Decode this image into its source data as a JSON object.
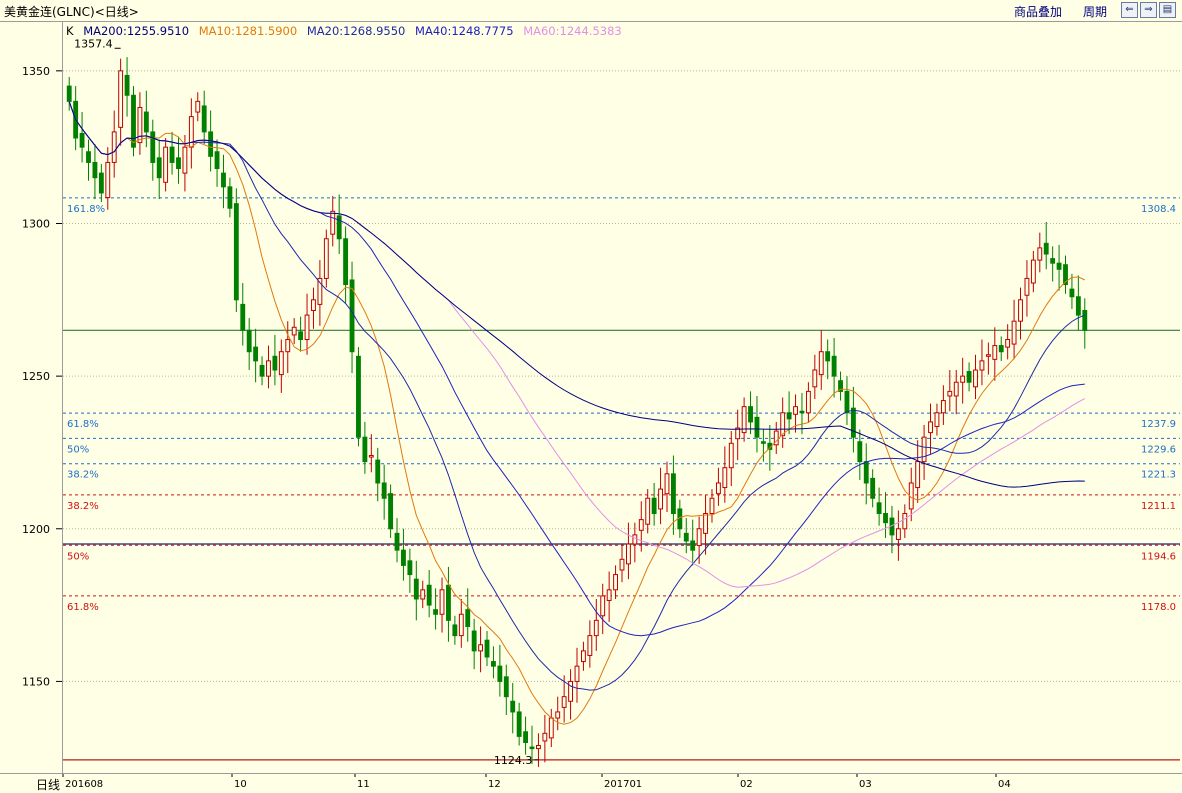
{
  "window": {
    "title": "美黄金连(GLNC)<日线>",
    "overlay_label": "商品叠加",
    "period_label": "周期",
    "nav_icons": [
      "prev-page-icon",
      "next-page-icon",
      "zoom-icon"
    ]
  },
  "legend": {
    "prefix": "K",
    "items": [
      {
        "name": "MA200",
        "value": "1255.9510",
        "color": "#000080"
      },
      {
        "name": "MA10",
        "value": "1281.5900",
        "color": "#E07A10"
      },
      {
        "name": "MA20",
        "value": "1268.9550",
        "color": "#1F2AA6"
      },
      {
        "name": "MA40",
        "value": "1248.7775",
        "color": "#2020C0"
      },
      {
        "name": "MA60",
        "value": "1244.5383",
        "color": "#E28FE8"
      }
    ]
  },
  "bottom": {
    "period": "日线"
  },
  "colors": {
    "background": "#FFFFE5",
    "up": "#C00000",
    "down": "#008000",
    "fib_up": "#1E6FC8",
    "fib_down": "#D01010",
    "grid": "#B8B8A0"
  },
  "chart_data": {
    "type": "candlestick",
    "ylim": [
      1120,
      1366
    ],
    "yticks": [
      1150,
      1200,
      1250,
      1300,
      1350
    ],
    "xticks": [
      "201608",
      "10",
      "11",
      "12",
      "201701",
      "02",
      "03",
      "04"
    ],
    "annotations": {
      "high": {
        "label": "1357.4",
        "value": 1357.4,
        "index": 8
      },
      "low": {
        "label": "1124.3",
        "value": 1124.3,
        "index": 73
      }
    },
    "fib_levels": [
      {
        "label": "161.8%",
        "value": 1308.4,
        "side": "up"
      },
      {
        "label": "61.8%",
        "value": 1237.9,
        "side": "up"
      },
      {
        "label": "50%",
        "value": 1229.6,
        "side": "up"
      },
      {
        "label": "38.2%",
        "value": 1221.3,
        "side": "up"
      },
      {
        "label": "38.2%",
        "value": 1211.1,
        "side": "down"
      },
      {
        "label": "50%",
        "value": 1194.6,
        "side": "down"
      },
      {
        "label": "61.8%",
        "value": 1178.0,
        "side": "down"
      }
    ],
    "hlines": [
      {
        "value": 1265,
        "color": "#2E7D32"
      },
      {
        "value": 1195,
        "color": "#1A237E"
      },
      {
        "value": 1124.3,
        "color": "#B71C1C"
      }
    ],
    "closes": [
      1340,
      1328,
      1325,
      1320,
      1315,
      1310,
      1320,
      1330,
      1350,
      1342,
      1325,
      1338,
      1330,
      1320,
      1315,
      1325,
      1320,
      1318,
      1325,
      1335,
      1340,
      1330,
      1322,
      1318,
      1312,
      1305,
      1275,
      1265,
      1258,
      1255,
      1250,
      1255,
      1252,
      1258,
      1262,
      1266,
      1262,
      1270,
      1275,
      1282,
      1295,
      1304,
      1295,
      1280,
      1258,
      1230,
      1222,
      1224,
      1215,
      1210,
      1200,
      1193,
      1188,
      1185,
      1177,
      1180,
      1175,
      1172,
      1180,
      1170,
      1165,
      1172,
      1168,
      1160,
      1162,
      1158,
      1155,
      1150,
      1145,
      1140,
      1132,
      1130,
      1128,
      1129,
      1133,
      1138,
      1140,
      1145,
      1150,
      1155,
      1160,
      1165,
      1170,
      1178,
      1180,
      1185,
      1190,
      1195,
      1198,
      1203,
      1210,
      1205,
      1213,
      1218,
      1205,
      1200,
      1196,
      1193,
      1200,
      1205,
      1210,
      1215,
      1220,
      1228,
      1233,
      1240,
      1235,
      1230,
      1228,
      1226,
      1232,
      1238,
      1236,
      1240,
      1238,
      1245,
      1252,
      1258,
      1255,
      1250,
      1245,
      1238,
      1230,
      1222,
      1215,
      1210,
      1205,
      1202,
      1198,
      1200,
      1205,
      1215,
      1222,
      1230,
      1235,
      1238,
      1242,
      1245,
      1248,
      1250,
      1248,
      1252,
      1255,
      1257,
      1260,
      1258,
      1262,
      1268,
      1275,
      1282,
      1288,
      1292,
      1290,
      1287,
      1285,
      1280,
      1276,
      1270,
      1265
    ]
  }
}
